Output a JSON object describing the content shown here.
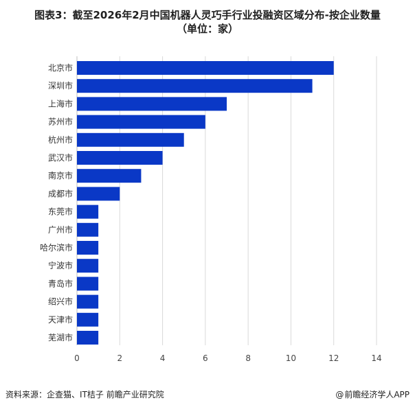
{
  "title": "图表3：截至2026年2月中国机器人灵巧手行业投融资区域分布-按企业数量",
  "subtitle": "单位：家",
  "colors": {
    "bar": "#0a38c6",
    "grid": "#d9d9d9",
    "axis": "#bfbfbf"
  },
  "chart_data": {
    "type": "bar",
    "orientation": "horizontal",
    "categories": [
      "北京市",
      "深圳市",
      "上海市",
      "苏州市",
      "杭州市",
      "武汉市",
      "南京市",
      "成都市",
      "东莞市",
      "广州市",
      "哈尔滨市",
      "宁波市",
      "青岛市",
      "绍兴市",
      "天津市",
      "芜湖市"
    ],
    "values": [
      12,
      11,
      7,
      6,
      5,
      4,
      3,
      2,
      1,
      1,
      1,
      1,
      1,
      1,
      1,
      1
    ],
    "xlim": [
      0,
      14
    ],
    "xticks": [
      0,
      2,
      4,
      6,
      8,
      10,
      12,
      14
    ],
    "grid": "vertical",
    "legend": "none"
  },
  "footer": {
    "source_label": "资料来源",
    "source_text": "企查猫、IT桔子 前瞻产业研究院",
    "brand_symbol": "@",
    "brand_text": "前瞻经济学人APP"
  }
}
